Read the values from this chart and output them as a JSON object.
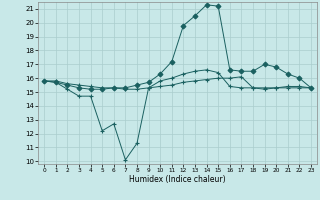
{
  "xlabel": "Humidex (Indice chaleur)",
  "ylabel": "",
  "xlim": [
    -0.5,
    23.5
  ],
  "ylim": [
    9.8,
    21.5
  ],
  "yticks": [
    10,
    11,
    12,
    13,
    14,
    15,
    16,
    17,
    18,
    19,
    20,
    21
  ],
  "xticks": [
    0,
    1,
    2,
    3,
    4,
    5,
    6,
    7,
    8,
    9,
    10,
    11,
    12,
    13,
    14,
    15,
    16,
    17,
    18,
    19,
    20,
    21,
    22,
    23
  ],
  "bg_color": "#c8e8e8",
  "grid_color": "#aacece",
  "line_color": "#1a6060",
  "series": [
    {
      "x": [
        0,
        1,
        2,
        3,
        4,
        5,
        6,
        7,
        8,
        9,
        10,
        11,
        12,
        13,
        14,
        15,
        16,
        17,
        18,
        19,
        20,
        21,
        22,
        23
      ],
      "y": [
        15.8,
        15.7,
        15.2,
        14.7,
        14.7,
        12.2,
        12.7,
        10.1,
        11.3,
        15.3,
        15.8,
        16.0,
        16.3,
        16.5,
        16.6,
        16.4,
        15.4,
        15.3,
        15.3,
        15.3,
        15.3,
        15.3,
        15.3,
        15.3
      ],
      "marker": "+"
    },
    {
      "x": [
        0,
        1,
        2,
        3,
        4,
        5,
        6,
        7,
        8,
        9,
        10,
        11,
        12,
        13,
        14,
        15,
        16,
        17,
        18,
        19,
        20,
        21,
        22,
        23
      ],
      "y": [
        15.8,
        15.8,
        15.6,
        15.5,
        15.4,
        15.3,
        15.3,
        15.2,
        15.2,
        15.3,
        15.4,
        15.5,
        15.7,
        15.8,
        15.9,
        16.0,
        16.0,
        16.1,
        15.3,
        15.2,
        15.3,
        15.4,
        15.4,
        15.3
      ],
      "marker": "+"
    },
    {
      "x": [
        0,
        1,
        2,
        3,
        4,
        5,
        6,
        7,
        8,
        9,
        10,
        11,
        12,
        13,
        14,
        15,
        16,
        17,
        18,
        19,
        20,
        21,
        22,
        23
      ],
      "y": [
        15.8,
        15.7,
        15.5,
        15.3,
        15.2,
        15.2,
        15.3,
        15.3,
        15.5,
        15.7,
        16.3,
        17.2,
        19.8,
        20.5,
        21.3,
        21.2,
        16.6,
        16.5,
        16.5,
        17.0,
        16.8,
        16.3,
        16.0,
        15.3
      ],
      "marker": "D",
      "markersize": 2.5
    }
  ]
}
